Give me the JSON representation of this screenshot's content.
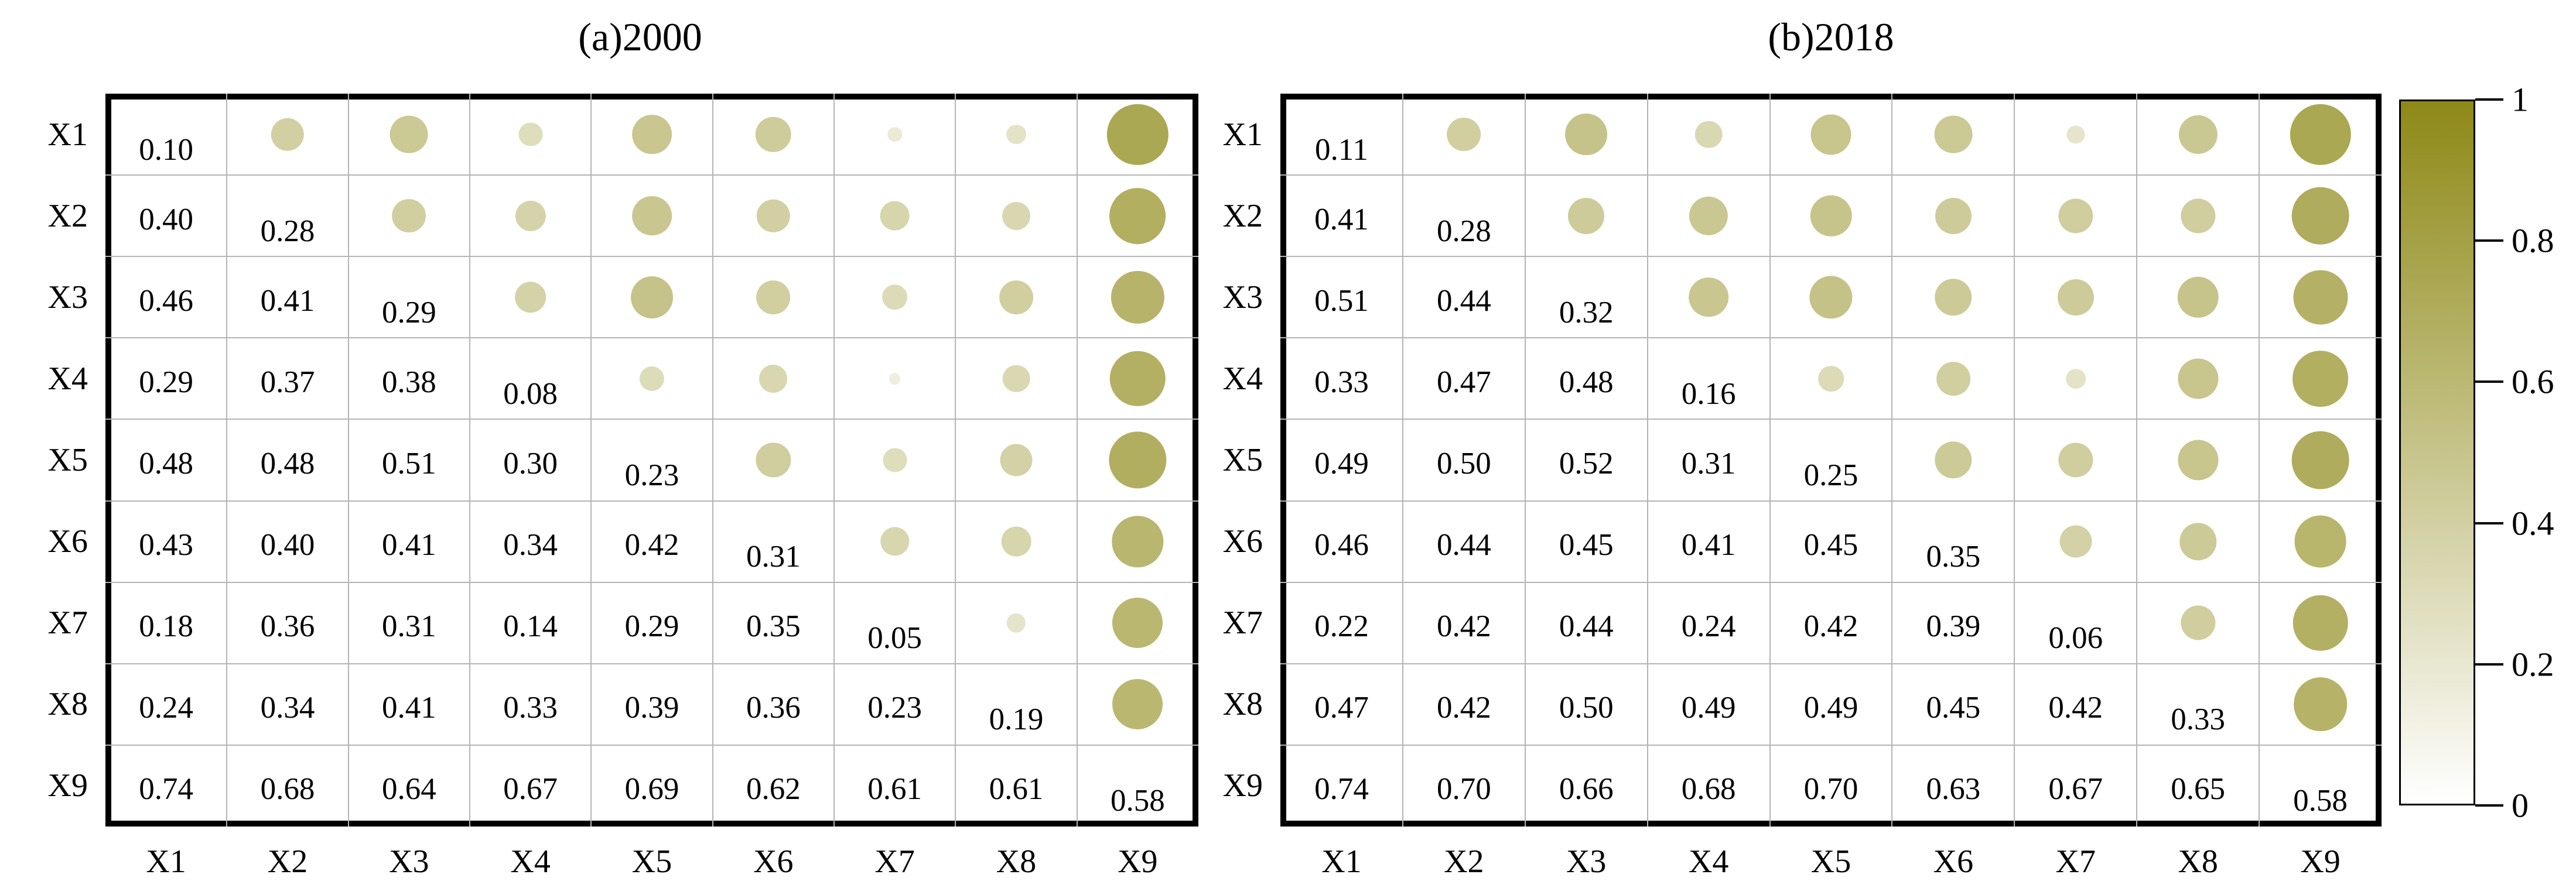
{
  "figure": {
    "background": "#ffffff",
    "colors": {
      "bubble_max": "#8e8917",
      "bubble_min": "#ffffff",
      "grid_line": "#b4b4b4",
      "frame_border": "#000000",
      "text": "#000000"
    },
    "colorbar": {
      "tick_labels": [
        "1",
        "0.8",
        "0.6",
        "0.4",
        "0.2",
        "0"
      ],
      "tick_values": [
        1,
        0.8,
        0.6,
        0.4,
        0.2,
        0
      ],
      "top_color": "#8e8917",
      "bottom_color": "#ffffff"
    }
  },
  "chart_data": [
    {
      "type": "heatmap",
      "title": "(a)2000",
      "x_labels": [
        "X1",
        "X2",
        "X3",
        "X4",
        "X5",
        "X6",
        "X7",
        "X8",
        "X9"
      ],
      "y_labels": [
        "X1",
        "X2",
        "X3",
        "X4",
        "X5",
        "X6",
        "X7",
        "X8",
        "X9"
      ],
      "display": "lower triangle + diagonal shown as numbers; upper triangle shown as bubbles whose size and color encode the mirrored correlation value",
      "value_range": [
        0,
        1
      ],
      "values": [
        [
          "0.10"
        ],
        [
          "0.40",
          "0.28"
        ],
        [
          "0.46",
          "0.41",
          "0.29"
        ],
        [
          "0.29",
          "0.37",
          "0.38",
          "0.08"
        ],
        [
          "0.48",
          "0.48",
          "0.51",
          "0.30",
          "0.23"
        ],
        [
          "0.43",
          "0.40",
          "0.41",
          "0.34",
          "0.42",
          "0.31"
        ],
        [
          "0.18",
          "0.36",
          "0.31",
          "0.14",
          "0.29",
          "0.35",
          "0.05"
        ],
        [
          "0.24",
          "0.34",
          "0.41",
          "0.33",
          "0.39",
          "0.36",
          "0.23",
          "0.19"
        ],
        [
          "0.74",
          "0.68",
          "0.64",
          "0.67",
          "0.69",
          "0.62",
          "0.61",
          "0.61",
          "0.58"
        ]
      ]
    },
    {
      "type": "heatmap",
      "title": "(b)2018",
      "x_labels": [
        "X1",
        "X2",
        "X3",
        "X4",
        "X5",
        "X6",
        "X7",
        "X8",
        "X9"
      ],
      "y_labels": [
        "X1",
        "X2",
        "X3",
        "X4",
        "X5",
        "X6",
        "X7",
        "X8",
        "X9"
      ],
      "display": "lower triangle + diagonal shown as numbers; upper triangle shown as bubbles whose size and color encode the mirrored correlation value",
      "value_range": [
        0,
        1
      ],
      "values": [
        [
          "0.11"
        ],
        [
          "0.41",
          "0.28"
        ],
        [
          "0.51",
          "0.44",
          "0.32"
        ],
        [
          "0.33",
          "0.47",
          "0.48",
          "0.16"
        ],
        [
          "0.49",
          "0.50",
          "0.52",
          "0.31",
          "0.25"
        ],
        [
          "0.46",
          "0.44",
          "0.45",
          "0.41",
          "0.45",
          "0.35"
        ],
        [
          "0.22",
          "0.42",
          "0.44",
          "0.24",
          "0.42",
          "0.39",
          "0.06"
        ],
        [
          "0.47",
          "0.42",
          "0.50",
          "0.49",
          "0.49",
          "0.45",
          "0.42",
          "0.33"
        ],
        [
          "0.74",
          "0.70",
          "0.66",
          "0.68",
          "0.70",
          "0.63",
          "0.67",
          "0.65",
          "0.58"
        ]
      ]
    }
  ]
}
